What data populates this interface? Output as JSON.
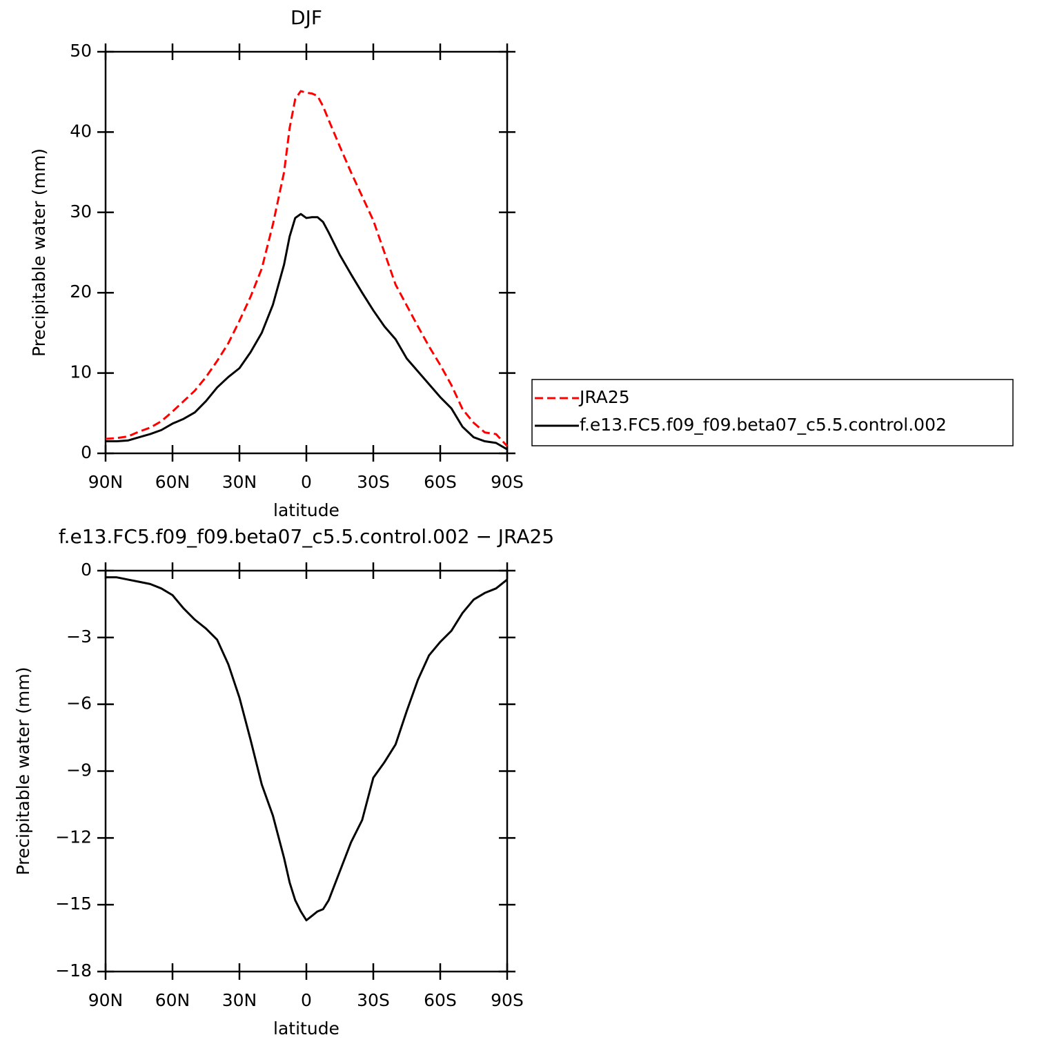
{
  "chart_data": [
    {
      "type": "line",
      "title": "DJF",
      "xlabel": "latitude",
      "ylabel": "Precipitable water (mm)",
      "x": [
        90,
        85,
        80,
        75,
        70,
        65,
        60,
        55,
        50,
        45,
        40,
        35,
        30,
        25,
        20,
        15,
        10,
        7.5,
        5,
        2.5,
        0,
        -2.5,
        -5,
        -7.5,
        -10,
        -15,
        -20,
        -25,
        -30,
        -35,
        -40,
        -45,
        -50,
        -55,
        -60,
        -65,
        -70,
        -75,
        -80,
        -85,
        -90
      ],
      "series": [
        {
          "name": "JRA25",
          "color": "#ff0000",
          "dash": "dashed",
          "values": [
            1.8,
            1.9,
            2.1,
            2.7,
            3.2,
            4.0,
            5.2,
            6.5,
            7.8,
            9.5,
            11.5,
            13.7,
            16.5,
            19.5,
            23.0,
            28.5,
            35.0,
            40.5,
            44.1,
            45.1,
            44.9,
            44.8,
            44.5,
            43.2,
            41.5,
            38.2,
            35.0,
            32.0,
            29.0,
            25.0,
            21.0,
            18.4,
            15.8,
            13.3,
            11.0,
            8.5,
            5.5,
            3.8,
            2.6,
            2.4,
            0.9
          ]
        },
        {
          "name": "f.e13.FC5.f09_f09.beta07_c5.5.control.002",
          "color": "#000000",
          "dash": "solid",
          "values": [
            1.5,
            1.5,
            1.6,
            2.0,
            2.4,
            2.9,
            3.7,
            4.3,
            5.1,
            6.5,
            8.2,
            9.5,
            10.6,
            12.6,
            15.0,
            18.5,
            23.5,
            27.0,
            29.3,
            29.8,
            29.3,
            29.4,
            29.4,
            28.8,
            27.5,
            24.7,
            22.3,
            20.0,
            17.8,
            15.8,
            14.2,
            11.8,
            10.2,
            8.6,
            7.0,
            5.6,
            3.3,
            2.0,
            1.5,
            1.3,
            0.5
          ]
        }
      ],
      "xlim": [
        90,
        -90
      ],
      "xticks": [
        {
          "value": 90,
          "label": "90N"
        },
        {
          "value": 60,
          "label": "60N"
        },
        {
          "value": 30,
          "label": "30N"
        },
        0,
        {
          "value": -30,
          "label": "30S"
        },
        {
          "value": -60,
          "label": "60S"
        },
        {
          "value": -90,
          "label": "90S"
        }
      ],
      "ylim": [
        0,
        50
      ],
      "yticks": [
        0,
        10,
        20,
        30,
        40,
        50
      ],
      "legend": "right"
    },
    {
      "type": "line",
      "title": "f.e13.FC5.f09_f09.beta07_c5.5.control.002 − JRA25",
      "xlabel": "latitude",
      "ylabel": "Precipitable water (mm)",
      "x": [
        90,
        85,
        80,
        75,
        70,
        65,
        60,
        55,
        50,
        45,
        40,
        35,
        30,
        25,
        20,
        15,
        10,
        7.5,
        5,
        2.5,
        0,
        -2.5,
        -5,
        -7.5,
        -10,
        -15,
        -20,
        -25,
        -30,
        -35,
        -40,
        -45,
        -50,
        -55,
        -60,
        -65,
        -70,
        -75,
        -80,
        -85,
        -90
      ],
      "series": [
        {
          "color": "#000000",
          "dash": "solid",
          "values": [
            -0.3,
            -0.3,
            -0.4,
            -0.5,
            -0.6,
            -0.8,
            -1.1,
            -1.7,
            -2.2,
            -2.6,
            -3.1,
            -4.2,
            -5.7,
            -7.6,
            -9.6,
            -11.0,
            -12.9,
            -14.0,
            -14.8,
            -15.3,
            -15.7,
            -15.5,
            -15.3,
            -15.2,
            -14.8,
            -13.5,
            -12.2,
            -11.2,
            -9.3,
            -8.6,
            -7.8,
            -6.3,
            -4.9,
            -3.8,
            -3.2,
            -2.7,
            -1.9,
            -1.3,
            -1.0,
            -0.8,
            -0.4
          ]
        }
      ],
      "xlim": [
        90,
        -90
      ],
      "xticks": [
        {
          "value": 90,
          "label": "90N"
        },
        {
          "value": 60,
          "label": "60N"
        },
        {
          "value": 30,
          "label": "30N"
        },
        0,
        {
          "value": -30,
          "label": "30S"
        },
        {
          "value": -60,
          "label": "60S"
        },
        {
          "value": -90,
          "label": "90S"
        }
      ],
      "ylim": [
        -18,
        0
      ],
      "yticks": [
        {
          "value": -18,
          "label": "−18"
        },
        {
          "value": -15,
          "label": "−15"
        },
        {
          "value": -12,
          "label": "−12"
        },
        {
          "value": -9,
          "label": "−9"
        },
        {
          "value": -6,
          "label": "−6"
        },
        {
          "value": -3,
          "label": "−3"
        },
        0
      ]
    }
  ]
}
